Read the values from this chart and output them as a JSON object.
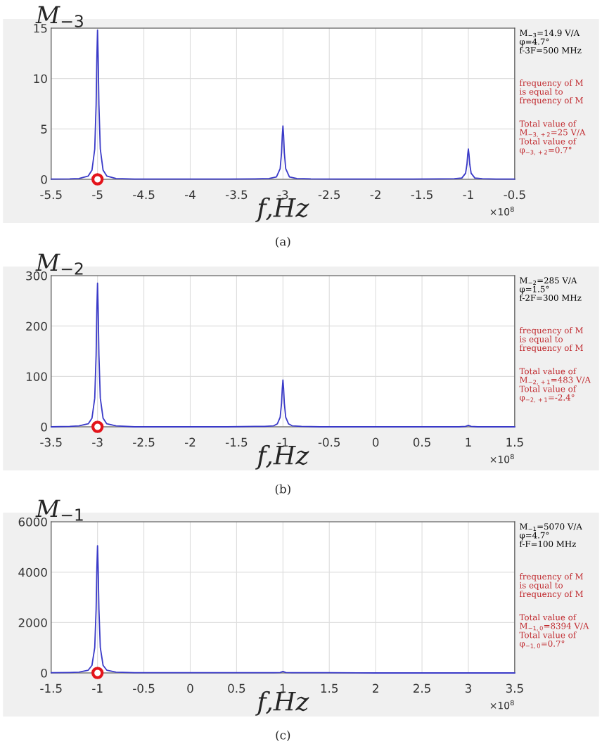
{
  "chart_data": [
    {
      "type": "line",
      "xlabel": "f,Hz",
      "ylabel": "M$_{−3}$",
      "grid": true,
      "legend": false,
      "xlim": [
        -5.5,
        -0.5
      ],
      "xticks": [
        -5.5,
        -5,
        -4.5,
        -4,
        -3.5,
        -3,
        -2.5,
        -2,
        -1.5,
        -1,
        -0.5
      ],
      "ylim": [
        0,
        15
      ],
      "yticks": [
        0,
        5,
        10,
        15
      ],
      "annotations": [
        "M$_{−3}$=14.9 V/A\nφ=4.7°\nf-3F=500 MHz",
        "frequency of M\nis equal to\nfrequency of M",
        "Total value of\nM$_{−3,+2}$=25 V/A\nTotal value of\nφ$_{−3,+2}$=0.7°",
        "×10$^{8}$",
        "(a)"
      ],
      "series": [
        {
          "type": "line",
          "color": "#3a3ac8",
          "x": [
            -5.5,
            -5.3,
            -5.2,
            -5.1,
            -5.06,
            -5.03,
            -5.015,
            -5.007,
            -5,
            -4.993,
            -4.985,
            -4.97,
            -4.94,
            -4.9,
            -4.8,
            -4.6,
            -4.3,
            -4,
            -3.6,
            -3.3,
            -3.15,
            -3.07,
            -3.03,
            -3.015,
            -3.007,
            -3,
            -2.993,
            -2.985,
            -2.97,
            -2.93,
            -2.85,
            -2.7,
            -2.4,
            -2,
            -1.6,
            -1.3,
            -1.15,
            -1.07,
            -1.03,
            -1.015,
            -1.007,
            -1,
            -0.993,
            -0.985,
            -0.97,
            -0.93,
            -0.85,
            -0.7,
            -0.5
          ],
          "values": [
            0.02,
            0.04,
            0.08,
            0.33,
            0.9,
            3.0,
            7.4,
            12.1,
            14.8,
            12.1,
            7.4,
            3.0,
            0.9,
            0.33,
            0.08,
            0.02,
            0.02,
            0.02,
            0.03,
            0.05,
            0.08,
            0.23,
            1.06,
            2.65,
            4.35,
            5.3,
            4.35,
            2.65,
            1.06,
            0.23,
            0.08,
            0.04,
            0.03,
            0.03,
            0.03,
            0.04,
            0.06,
            0.13,
            0.6,
            1.5,
            2.46,
            3.0,
            2.46,
            1.5,
            0.6,
            0.13,
            0.06,
            0.03,
            0.02
          ]
        },
        {
          "type": "scatter",
          "color": "#e3141b",
          "marker": "circle",
          "x": [
            -5
          ],
          "values": [
            0
          ]
        }
      ]
    },
    {
      "type": "line",
      "xlabel": "f,Hz",
      "ylabel": "M$_{−2}$",
      "grid": true,
      "legend": false,
      "xlim": [
        -3.5,
        1.5
      ],
      "xticks": [
        -3.5,
        -3,
        -2.5,
        -2,
        -1.5,
        -1,
        -0.5,
        0,
        0.5,
        1,
        1.5
      ],
      "ylim": [
        0,
        300
      ],
      "yticks": [
        0,
        100,
        200,
        300
      ],
      "annotations": [
        "M$_{−2}$=285 V/A\nφ=1.5°\nf-2F=300 MHz",
        "frequency of M\nis equal to\nfrequency of M",
        "Total value of\nM$_{−2,+1}$=483 V/A\nTotal value of\nφ$_{−2,+1}$=-2.4°",
        "×10$^{8}$",
        "(b)"
      ],
      "series": [
        {
          "type": "line",
          "color": "#3a3ac8",
          "x": [
            -3.5,
            -3.3,
            -3.2,
            -3.1,
            -3.06,
            -3.03,
            -3.015,
            -3.007,
            -3,
            -2.993,
            -2.985,
            -2.97,
            -2.94,
            -2.9,
            -2.8,
            -2.6,
            -2.3,
            -2,
            -1.6,
            -1.3,
            -1.2,
            -1.1,
            -1.06,
            -1.03,
            -1.015,
            -1.007,
            -1,
            -0.993,
            -0.985,
            -0.97,
            -0.94,
            -0.9,
            -0.8,
            -0.6,
            -0.2,
            0.3,
            0.7,
            0.9,
            0.97,
            0.985,
            1,
            1.015,
            1.03,
            1.1,
            1.5
          ],
          "values": [
            0,
            1,
            2,
            6,
            17,
            57,
            143,
            234,
            285,
            234,
            143,
            57,
            17,
            6,
            2,
            0,
            0,
            0,
            0,
            1,
            1,
            2,
            6,
            19,
            47,
            76,
            93,
            76,
            47,
            19,
            6,
            2,
            1,
            0,
            0,
            0,
            0,
            0,
            1,
            2,
            3,
            2,
            1,
            0,
            0
          ]
        },
        {
          "type": "scatter",
          "color": "#e3141b",
          "marker": "circle",
          "x": [
            -3
          ],
          "values": [
            0
          ]
        }
      ]
    },
    {
      "type": "line",
      "xlabel": "f,Hz",
      "ylabel": "M$_{−1}$",
      "grid": true,
      "legend": false,
      "xlim": [
        -1.5,
        3.5
      ],
      "xticks": [
        -1.5,
        -1,
        -0.5,
        0,
        0.5,
        1,
        1.5,
        2,
        2.5,
        3,
        3.5
      ],
      "ylim": [
        0,
        6000
      ],
      "yticks": [
        0,
        2000,
        4000,
        6000
      ],
      "annotations": [
        "M$_{−1}$=5070 V/A\nφ=4.7°\nf-F=100 MHz",
        "frequency of M\nis equal to\nfrequency of M",
        "Total value of\nM$_{−1,0}$=8394 V/A\nTotal value of\nφ$_{−1,0}$=0.7°",
        "×10$^{8}$",
        "(c)"
      ],
      "series": [
        {
          "type": "line",
          "color": "#3a3ac8",
          "x": [
            -1.5,
            -1.3,
            -1.2,
            -1.1,
            -1.06,
            -1.03,
            -1.015,
            -1.007,
            -1,
            -0.993,
            -0.985,
            -0.97,
            -0.94,
            -0.9,
            -0.8,
            -0.6,
            -0.3,
            0,
            0.4,
            0.7,
            0.9,
            0.97,
            0.985,
            1,
            1.015,
            1.03,
            1.1,
            1.5,
            2,
            2.5,
            3,
            3.5
          ],
          "values": [
            10,
            20,
            30,
            110,
            300,
            1010,
            2530,
            4140,
            5050,
            4140,
            2530,
            1010,
            300,
            110,
            30,
            10,
            10,
            10,
            10,
            10,
            10,
            20,
            40,
            60,
            40,
            20,
            10,
            10,
            0,
            0,
            0,
            0
          ]
        },
        {
          "type": "scatter",
          "color": "#e3141b",
          "marker": "circle",
          "x": [
            -1
          ],
          "values": [
            0
          ]
        }
      ]
    }
  ]
}
